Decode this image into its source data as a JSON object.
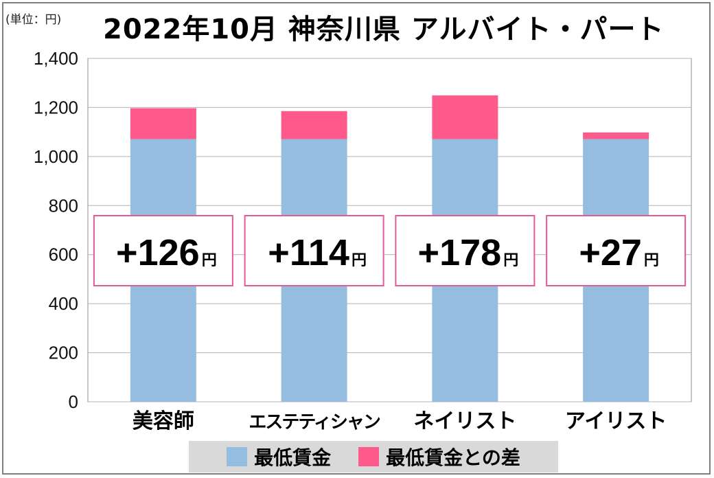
{
  "unit_label": "(単位：円)",
  "chart_data": {
    "type": "bar",
    "stacked": true,
    "title": "2022年10月 神奈川県 アルバイト・パート",
    "categories": [
      "美容師",
      "エステティシャン",
      "ネイリスト",
      "アイリスト"
    ],
    "series": [
      {
        "name": "最低賃金",
        "color": "#95bde0",
        "values": [
          1071,
          1071,
          1071,
          1071
        ]
      },
      {
        "name": "最低賃金との差",
        "color": "#ff5a8c",
        "values": [
          126,
          114,
          178,
          27
        ]
      }
    ],
    "callouts": [
      "+126",
      "+114",
      "+178",
      "+27"
    ],
    "callout_unit": "円",
    "ylim": [
      0,
      1400
    ],
    "yticks": [
      "0",
      "200",
      "400",
      "600",
      "800",
      "1,000",
      "1,200",
      "1,400"
    ],
    "ytick_values": [
      0,
      200,
      400,
      600,
      800,
      1000,
      1200,
      1400
    ],
    "grid": true,
    "legend_position": "bottom"
  }
}
